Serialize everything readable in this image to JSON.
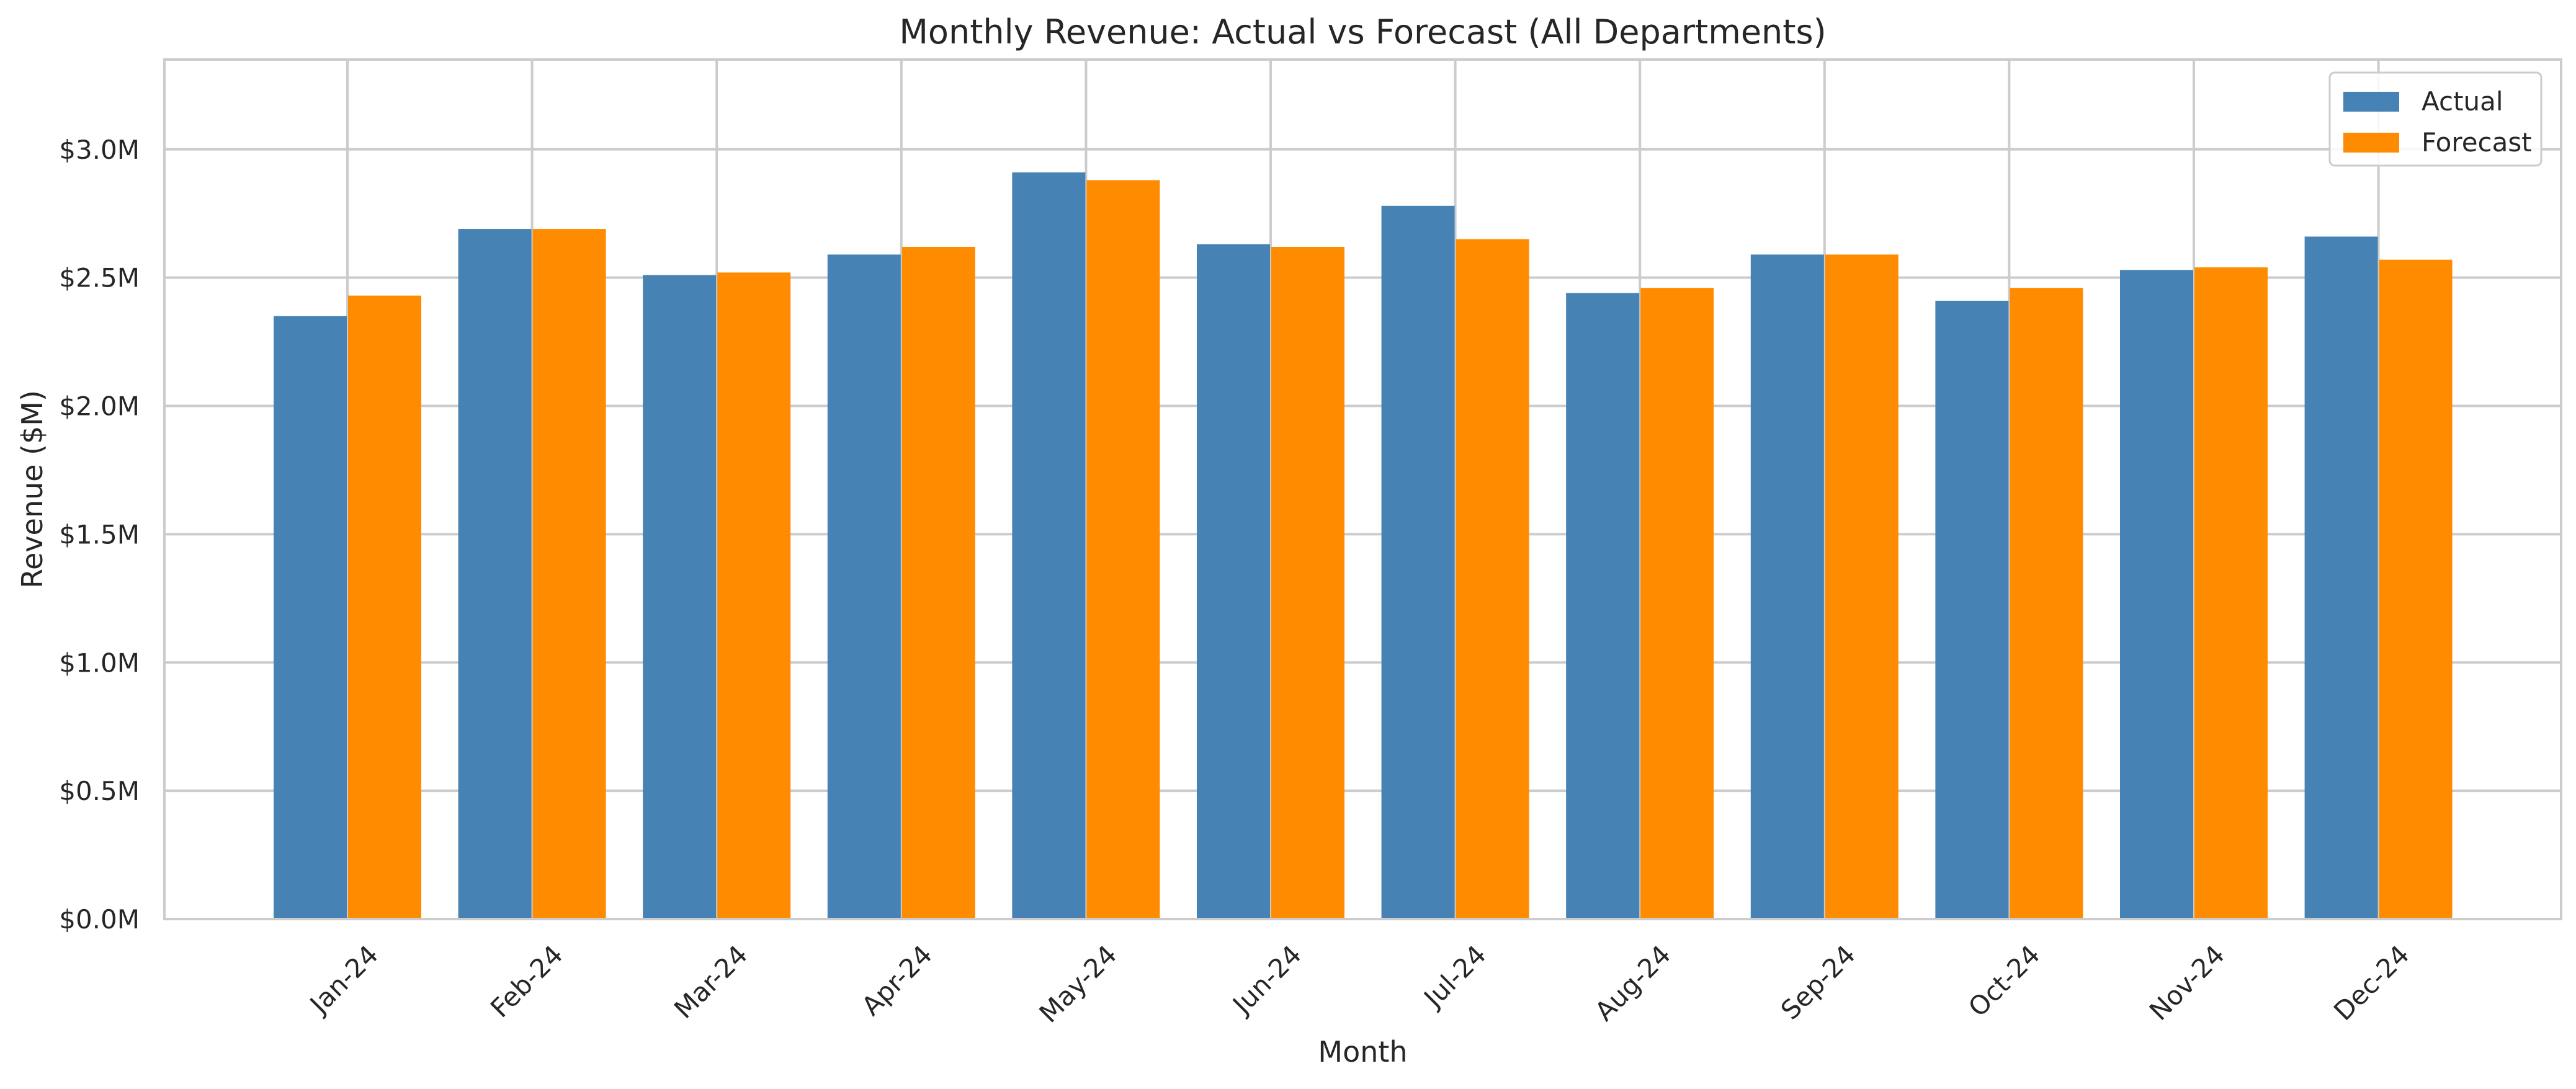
{
  "chart_data": {
    "type": "bar",
    "title": "Monthly Revenue: Actual vs Forecast (All Departments)",
    "xlabel": "Month",
    "ylabel": "Revenue ($M)",
    "categories": [
      "Jan-24",
      "Feb-24",
      "Mar-24",
      "Apr-24",
      "May-24",
      "Jun-24",
      "Jul-24",
      "Aug-24",
      "Sep-24",
      "Oct-24",
      "Nov-24",
      "Dec-24"
    ],
    "series": [
      {
        "name": "Actual",
        "color": "#4682B4",
        "values": [
          2.35,
          2.69,
          2.51,
          2.59,
          2.91,
          2.63,
          2.78,
          2.44,
          2.59,
          2.41,
          2.53,
          2.66
        ]
      },
      {
        "name": "Forecast",
        "color": "#FF8C00",
        "values": [
          2.43,
          2.69,
          2.52,
          2.62,
          2.88,
          2.62,
          2.65,
          2.46,
          2.59,
          2.46,
          2.54,
          2.57
        ]
      }
    ],
    "ylim": [
      0,
      3.35
    ],
    "yticks": [
      0.0,
      0.5,
      1.0,
      1.5,
      2.0,
      2.5,
      3.0
    ],
    "ytick_labels": [
      "$0.0M",
      "$0.5M",
      "$1.0M",
      "$1.5M",
      "$2.0M",
      "$2.5M",
      "$3.0M"
    ],
    "grid": true,
    "legend_position": "top-right",
    "xtick_rotation": -45
  }
}
